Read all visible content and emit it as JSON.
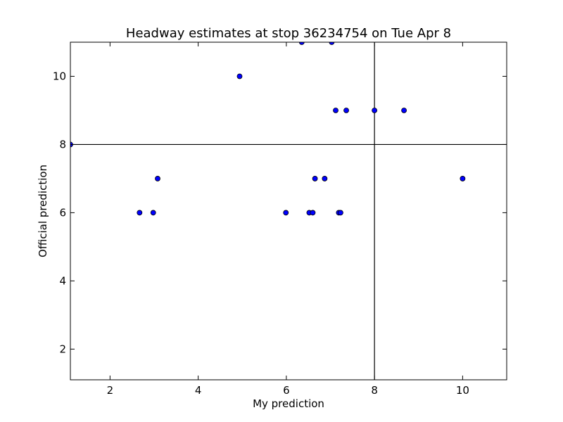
{
  "chart_data": {
    "type": "scatter",
    "title": "Headway estimates at stop 36234754 on Tue Apr 8",
    "xlabel": "My prediction",
    "ylabel": "Official prediction",
    "xlim": [
      1.1,
      11
    ],
    "ylim": [
      1.1,
      11
    ],
    "xticks": [
      2,
      4,
      6,
      8,
      10
    ],
    "yticks": [
      2,
      4,
      6,
      8,
      10
    ],
    "reference_lines": {
      "x": 8,
      "y": 8
    },
    "grid": false,
    "marker_color": "#0000ff",
    "points": [
      {
        "x": 1.1,
        "y": 8
      },
      {
        "x": 2.67,
        "y": 6
      },
      {
        "x": 2.98,
        "y": 6
      },
      {
        "x": 3.08,
        "y": 7
      },
      {
        "x": 4.94,
        "y": 10
      },
      {
        "x": 5.99,
        "y": 6
      },
      {
        "x": 6.35,
        "y": 11
      },
      {
        "x": 6.52,
        "y": 6
      },
      {
        "x": 6.6,
        "y": 6
      },
      {
        "x": 6.65,
        "y": 7
      },
      {
        "x": 6.87,
        "y": 7
      },
      {
        "x": 7.03,
        "y": 11
      },
      {
        "x": 7.12,
        "y": 9
      },
      {
        "x": 7.19,
        "y": 6
      },
      {
        "x": 7.23,
        "y": 6
      },
      {
        "x": 7.36,
        "y": 9
      },
      {
        "x": 8.0,
        "y": 9
      },
      {
        "x": 8.67,
        "y": 9
      },
      {
        "x": 10.0,
        "y": 7
      }
    ]
  }
}
